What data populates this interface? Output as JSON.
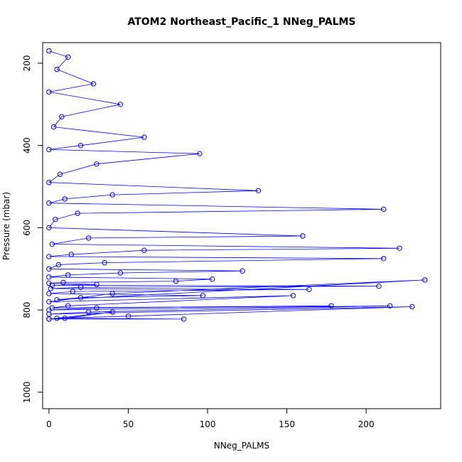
{
  "chart_data": {
    "type": "line",
    "title": "ATOM2 Northeast_Pacific_1 NNeg_PALMS",
    "xlabel": "NNeg_PALMS",
    "ylabel": "Pressure (mbar)",
    "x_ticks": [
      0,
      50,
      100,
      150,
      200
    ],
    "y_ticks": [
      200,
      400,
      600,
      800,
      1000
    ],
    "xlim": [
      -4,
      247
    ],
    "ylim": [
      1040,
      150
    ],
    "y_reversed": true,
    "grid": false,
    "legend": "none",
    "series_color": "#0000ff",
    "marker": "open-circle",
    "series": [
      {
        "x": [
          0,
          12,
          5,
          28,
          0,
          45,
          8,
          3,
          60,
          20,
          0,
          95,
          30,
          7,
          0,
          132,
          40,
          10,
          0,
          211,
          18,
          4,
          0,
          160,
          25,
          2,
          221,
          60,
          14,
          0,
          211,
          35,
          6,
          0,
          122,
          45,
          12,
          0,
          103,
          80,
          9,
          0,
          30,
          2,
          208,
          20,
          1,
          164,
          15,
          0,
          97,
          20,
          5,
          237,
          40,
          0,
          154,
          12,
          2,
          178,
          30,
          0,
          215,
          25,
          0,
          229,
          50,
          5,
          85,
          0,
          40,
          10,
          0
        ],
        "y": [
          170,
          185,
          215,
          250,
          270,
          300,
          330,
          355,
          380,
          400,
          410,
          420,
          445,
          470,
          490,
          510,
          520,
          530,
          540,
          555,
          565,
          580,
          600,
          620,
          625,
          640,
          650,
          655,
          665,
          670,
          675,
          685,
          690,
          700,
          705,
          710,
          715,
          720,
          725,
          730,
          733,
          735,
          738,
          740,
          742,
          745,
          748,
          750,
          755,
          760,
          765,
          770,
          775,
          727,
          760,
          780,
          765,
          790,
          795,
          790,
          795,
          800,
          790,
          805,
          810,
          792,
          815,
          820,
          822,
          822,
          805,
          820,
          822
        ]
      }
    ]
  }
}
